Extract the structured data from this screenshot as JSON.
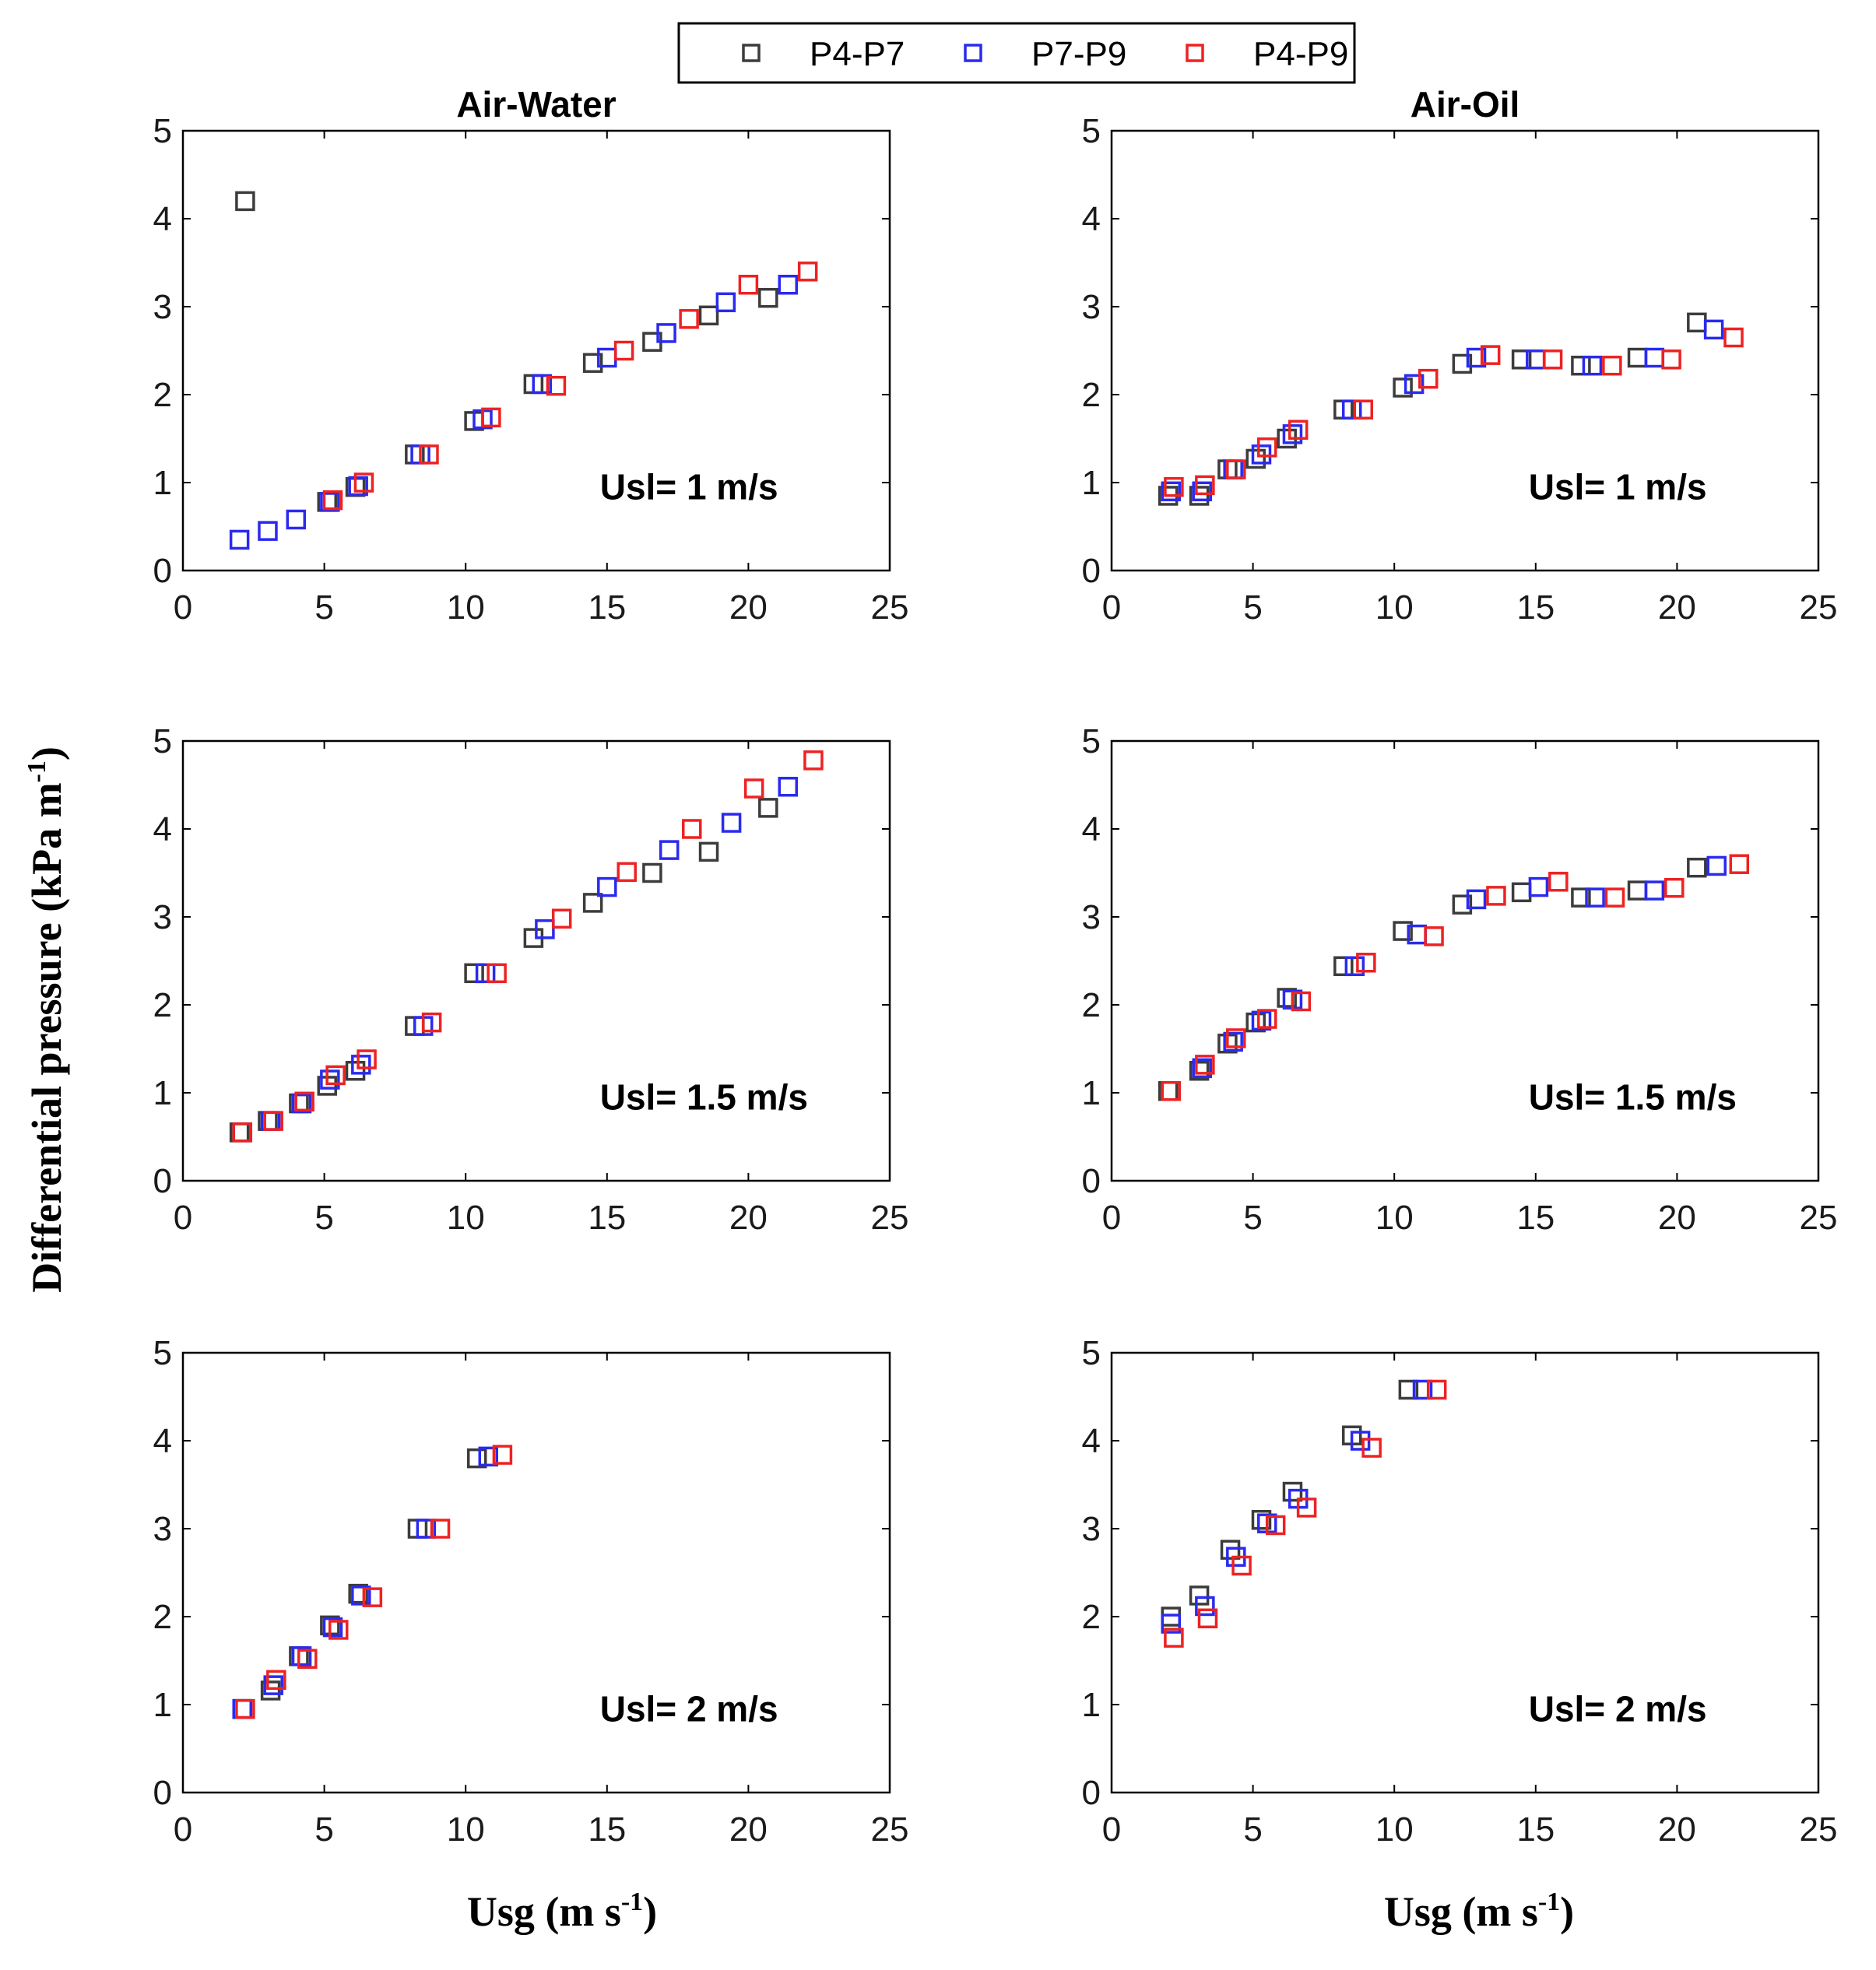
{
  "figure": {
    "legend": [
      {
        "label": "P4-P7",
        "color": "#3c3c3c"
      },
      {
        "label": "P7-P9",
        "color": "#2a2af0"
      },
      {
        "label": "P4-P9",
        "color": "#ee2222"
      }
    ],
    "ylabel": {
      "text": "Differential pressure (kPa m",
      "sup": "-1",
      "close": ")"
    },
    "xlabel": {
      "text": "Usg (m s",
      "sup": "-1",
      "close": ")"
    },
    "column_titles": [
      "Air-Water",
      "Air-Oil"
    ]
  },
  "chart_data": [
    {
      "type": "scatter",
      "fluid": "Air-Water",
      "title": "Air-Water",
      "annotation": "Usl= 1 m/s",
      "xlim": [
        0,
        25
      ],
      "ylim": [
        0,
        5
      ],
      "xticks": [
        "0",
        "5",
        "10",
        "15",
        "20",
        "25"
      ],
      "yticks": [
        "0",
        "1",
        "2",
        "3",
        "4",
        "5"
      ],
      "series": [
        {
          "name": "P4-P7",
          "x": [
            2.2,
            5.1,
            6.1,
            8.2,
            10.3,
            12.4,
            14.5,
            16.6,
            18.6,
            20.7
          ],
          "y": [
            4.2,
            0.78,
            0.95,
            1.32,
            1.7,
            2.12,
            2.36,
            2.6,
            2.9,
            3.1
          ]
        },
        {
          "name": "P7-P9",
          "x": [
            2.0,
            3.0,
            4.0,
            5.2,
            6.2,
            8.4,
            10.6,
            12.7,
            15.0,
            17.1,
            19.2,
            21.4
          ],
          "y": [
            0.35,
            0.45,
            0.58,
            0.78,
            0.96,
            1.32,
            1.72,
            2.12,
            2.42,
            2.7,
            3.05,
            3.25
          ]
        },
        {
          "name": "P4-P9",
          "x": [
            5.3,
            6.4,
            8.7,
            10.9,
            13.2,
            15.6,
            17.9,
            20.0,
            22.1
          ],
          "y": [
            0.8,
            1.0,
            1.32,
            1.74,
            2.1,
            2.5,
            2.86,
            3.25,
            3.4
          ]
        }
      ]
    },
    {
      "type": "scatter",
      "fluid": "Air-Oil",
      "title": "Air-Oil",
      "annotation": "Usl= 1 m/s",
      "xlim": [
        0,
        25
      ],
      "ylim": [
        0,
        5
      ],
      "xticks": [
        "0",
        "5",
        "10",
        "15",
        "20",
        "25"
      ],
      "yticks": [
        "0",
        "1",
        "2",
        "3",
        "4",
        "5"
      ],
      "series": [
        {
          "name": "P4-P7",
          "x": [
            2.0,
            3.1,
            4.1,
            5.1,
            6.2,
            8.2,
            10.3,
            12.4,
            14.5,
            16.6,
            18.6,
            20.7
          ],
          "y": [
            0.85,
            0.85,
            1.15,
            1.27,
            1.5,
            1.83,
            2.08,
            2.35,
            2.4,
            2.33,
            2.42,
            2.82
          ]
        },
        {
          "name": "P7-P9",
          "x": [
            2.1,
            3.2,
            4.3,
            5.3,
            6.4,
            8.5,
            10.7,
            12.9,
            15.0,
            17.0,
            19.2,
            21.3
          ],
          "y": [
            0.9,
            0.9,
            1.15,
            1.32,
            1.55,
            1.83,
            2.12,
            2.42,
            2.4,
            2.33,
            2.42,
            2.74
          ]
        },
        {
          "name": "P4-P9",
          "x": [
            2.2,
            3.3,
            4.4,
            5.5,
            6.6,
            8.9,
            11.2,
            13.4,
            15.6,
            17.7,
            19.8,
            22.0
          ],
          "y": [
            0.95,
            0.97,
            1.15,
            1.4,
            1.6,
            1.83,
            2.18,
            2.45,
            2.4,
            2.33,
            2.4,
            2.65
          ]
        }
      ]
    },
    {
      "type": "scatter",
      "fluid": "Air-Water",
      "title": "",
      "annotation": "Usl= 1.5 m/s",
      "xlim": [
        0,
        25
      ],
      "ylim": [
        0,
        5
      ],
      "xticks": [
        "0",
        "5",
        "10",
        "15",
        "20",
        "25"
      ],
      "yticks": [
        "0",
        "1",
        "2",
        "3",
        "4",
        "5"
      ],
      "series": [
        {
          "name": "P4-P7",
          "x": [
            2.0,
            3.0,
            4.1,
            5.1,
            6.1,
            8.2,
            10.3,
            12.4,
            14.5,
            16.6,
            18.6,
            20.7
          ],
          "y": [
            0.55,
            0.68,
            0.88,
            1.08,
            1.25,
            1.76,
            2.36,
            2.76,
            3.16,
            3.5,
            3.74,
            4.24
          ]
        },
        {
          "name": "P7-P9",
          "x": [
            2.1,
            3.1,
            4.2,
            5.2,
            6.3,
            8.5,
            10.7,
            12.8,
            15.0,
            17.2,
            19.4,
            21.4
          ],
          "y": [
            0.55,
            0.68,
            0.88,
            1.15,
            1.32,
            1.76,
            2.36,
            2.86,
            3.34,
            3.76,
            4.07,
            4.48
          ]
        },
        {
          "name": "P4-P9",
          "x": [
            2.1,
            3.2,
            4.3,
            5.4,
            6.5,
            8.8,
            11.1,
            13.4,
            15.7,
            18.0,
            20.2,
            22.3
          ],
          "y": [
            0.55,
            0.68,
            0.9,
            1.2,
            1.38,
            1.8,
            2.36,
            2.98,
            3.51,
            4.0,
            4.46,
            4.78
          ]
        }
      ]
    },
    {
      "type": "scatter",
      "fluid": "Air-Oil",
      "title": "",
      "annotation": "Usl= 1.5 m/s",
      "xlim": [
        0,
        25
      ],
      "ylim": [
        0,
        5
      ],
      "xticks": [
        "0",
        "5",
        "10",
        "15",
        "20",
        "25"
      ],
      "yticks": [
        "0",
        "1",
        "2",
        "3",
        "4",
        "5"
      ],
      "series": [
        {
          "name": "P4-P7",
          "x": [
            2.0,
            3.1,
            4.1,
            5.1,
            6.2,
            8.2,
            10.3,
            12.4,
            14.5,
            16.6,
            18.6,
            20.7
          ],
          "y": [
            1.02,
            1.25,
            1.56,
            1.8,
            2.08,
            2.44,
            2.84,
            3.14,
            3.28,
            3.22,
            3.3,
            3.56
          ]
        },
        {
          "name": "P7-P9",
          "x": [
            2.1,
            3.2,
            4.3,
            5.3,
            6.4,
            8.6,
            10.8,
            12.9,
            15.1,
            17.1,
            19.2,
            21.4
          ],
          "y": [
            1.02,
            1.28,
            1.58,
            1.82,
            2.06,
            2.44,
            2.8,
            3.2,
            3.34,
            3.22,
            3.3,
            3.58
          ]
        },
        {
          "name": "P4-P9",
          "x": [
            2.1,
            3.3,
            4.4,
            5.5,
            6.7,
            9.0,
            11.4,
            13.6,
            15.8,
            17.8,
            19.9,
            22.2
          ],
          "y": [
            1.02,
            1.32,
            1.62,
            1.84,
            2.04,
            2.48,
            2.78,
            3.24,
            3.4,
            3.22,
            3.33,
            3.6
          ]
        }
      ]
    },
    {
      "type": "scatter",
      "fluid": "Air-Water",
      "title": "",
      "annotation": "Usl= 2 m/s",
      "xlim": [
        0,
        25
      ],
      "ylim": [
        0,
        5
      ],
      "xticks": [
        "0",
        "5",
        "10",
        "15",
        "20",
        "25"
      ],
      "yticks": [
        "0",
        "1",
        "2",
        "3",
        "4",
        "5"
      ],
      "series": [
        {
          "name": "P4-P7",
          "x": [
            2.1,
            3.1,
            4.1,
            5.2,
            6.2,
            8.3,
            10.4
          ],
          "y": [
            0.95,
            1.16,
            1.55,
            1.9,
            2.26,
            3.0,
            3.8
          ]
        },
        {
          "name": "P7-P9",
          "x": [
            2.1,
            3.2,
            4.2,
            5.3,
            6.3,
            8.6,
            10.8
          ],
          "y": [
            0.95,
            1.22,
            1.55,
            1.88,
            2.24,
            3.0,
            3.82
          ]
        },
        {
          "name": "P4-P9",
          "x": [
            2.2,
            3.3,
            4.4,
            5.5,
            6.7,
            9.1,
            11.3
          ],
          "y": [
            0.95,
            1.28,
            1.52,
            1.85,
            2.22,
            3.0,
            3.84
          ]
        }
      ]
    },
    {
      "type": "scatter",
      "fluid": "Air-Oil",
      "title": "",
      "annotation": "Usl= 2 m/s",
      "xlim": [
        0,
        25
      ],
      "ylim": [
        0,
        5
      ],
      "xticks": [
        "0",
        "5",
        "10",
        "15",
        "20",
        "25"
      ],
      "yticks": [
        "0",
        "1",
        "2",
        "3",
        "4",
        "5"
      ],
      "series": [
        {
          "name": "P4-P7",
          "x": [
            2.1,
            3.1,
            4.2,
            5.3,
            6.4,
            8.5,
            10.5
          ],
          "y": [
            2.0,
            2.24,
            2.76,
            3.1,
            3.42,
            4.06,
            4.58
          ]
        },
        {
          "name": "P7-P9",
          "x": [
            2.1,
            3.3,
            4.4,
            5.5,
            6.6,
            8.8,
            11.0
          ],
          "y": [
            1.92,
            2.12,
            2.68,
            3.06,
            3.34,
            4.0,
            4.58
          ]
        },
        {
          "name": "P4-P9",
          "x": [
            2.2,
            3.4,
            4.6,
            5.8,
            6.9,
            9.2,
            11.5
          ],
          "y": [
            1.76,
            1.98,
            2.58,
            3.04,
            3.24,
            3.92,
            4.58
          ]
        }
      ]
    }
  ]
}
